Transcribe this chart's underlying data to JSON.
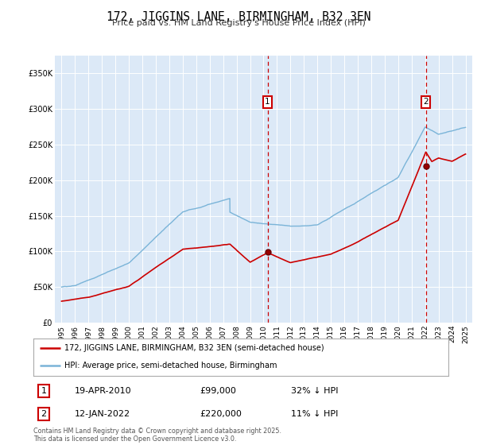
{
  "title": "172, JIGGINS LANE, BIRMINGHAM, B32 3EN",
  "subtitle": "Price paid vs. HM Land Registry's House Price Index (HPI)",
  "background_color": "#dce9f7",
  "legend_entries": [
    "172, JIGGINS LANE, BIRMINGHAM, B32 3EN (semi-detached house)",
    "HPI: Average price, semi-detached house, Birmingham"
  ],
  "annotation1": {
    "label": "1",
    "date": "19-APR-2010",
    "price": "£99,000",
    "hpi": "32% ↓ HPI"
  },
  "annotation2": {
    "label": "2",
    "date": "12-JAN-2022",
    "price": "£220,000",
    "hpi": "11% ↓ HPI"
  },
  "footer": "Contains HM Land Registry data © Crown copyright and database right 2025.\nThis data is licensed under the Open Government Licence v3.0.",
  "hpi_color": "#7ab4d8",
  "price_color": "#cc0000",
  "vline_color": "#cc0000",
  "marker1_x": 2010.3,
  "marker2_x": 2022.05,
  "marker1_y": 99000,
  "marker2_y": 220000,
  "ylim": [
    0,
    375000
  ],
  "xlim": [
    1994.5,
    2025.5
  ],
  "yticks": [
    0,
    50000,
    100000,
    150000,
    200000,
    250000,
    300000,
    350000
  ],
  "xticks": [
    1995,
    1996,
    1997,
    1998,
    1999,
    2000,
    2001,
    2002,
    2003,
    2004,
    2005,
    2006,
    2007,
    2008,
    2009,
    2010,
    2011,
    2012,
    2013,
    2014,
    2015,
    2016,
    2017,
    2018,
    2019,
    2020,
    2021,
    2022,
    2023,
    2024,
    2025
  ]
}
